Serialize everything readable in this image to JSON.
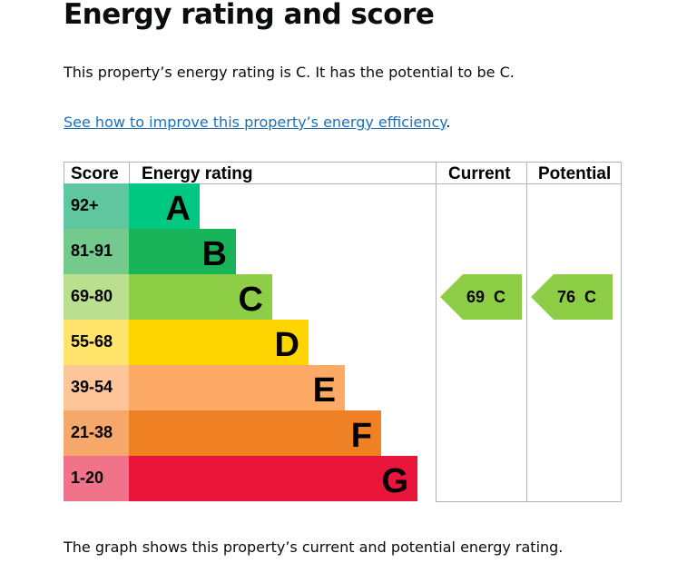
{
  "page": {
    "title": "Energy rating and score",
    "intro": "This property’s energy rating is C. It has the potential to be C.",
    "link": "See how to improve this property’s energy efficiency",
    "link_suffix": ".",
    "caption": "The graph shows this property’s current and potential energy rating."
  },
  "chart_data": {
    "type": "table",
    "headers": [
      "Score",
      "Energy rating",
      "Current",
      "Potential"
    ],
    "bands": [
      {
        "score": "92+",
        "letter": "A",
        "color": "#00c781",
        "score_color": "#5fc6a0"
      },
      {
        "score": "81-91",
        "letter": "B",
        "color": "#19b459",
        "score_color": "#74c98c"
      },
      {
        "score": "69-80",
        "letter": "C",
        "color": "#8dce46",
        "score_color": "#badf8e"
      },
      {
        "score": "55-68",
        "letter": "D",
        "color": "#ffd500",
        "score_color": "#ffe36a"
      },
      {
        "score": "39-54",
        "letter": "E",
        "color": "#fcaa65",
        "score_color": "#fdc69a"
      },
      {
        "score": "21-38",
        "letter": "F",
        "color": "#ef8023",
        "score_color": "#f5a86a"
      },
      {
        "score": "1-20",
        "letter": "G",
        "color": "#e9153b",
        "score_color": "#f07389"
      }
    ],
    "current": {
      "value": 69,
      "letter": "C",
      "label": "69  C"
    },
    "potential": {
      "value": 76,
      "letter": "C",
      "label": "76  C"
    }
  }
}
